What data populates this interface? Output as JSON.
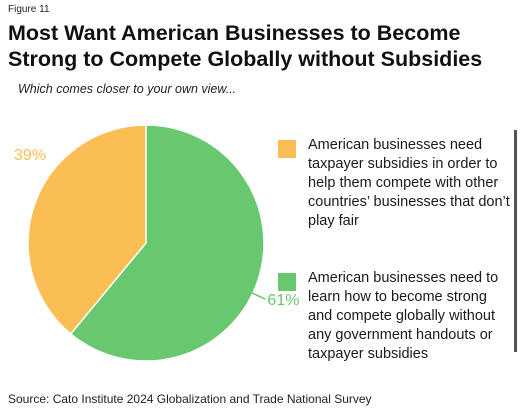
{
  "figure_label": "Figure 11",
  "title": "Most Want American Businesses to Become Strong to Compete Globally without Subsidies",
  "subtitle": "Which comes closer to your own view...",
  "source": "Source: Cato Institute 2024 Globalization and Trade National Survey",
  "chart_data": {
    "type": "pie",
    "title": "Most Want American Businesses to Become Strong to Compete Globally without Subsidies",
    "subtitle": "Which comes closer to your own view...",
    "slices": [
      {
        "label": "American businesses need taxpayer subsidies in order to help them compete with other countries’ businesses that don’t play fair",
        "value": 39,
        "display": "39%",
        "color": "#fbbe55"
      },
      {
        "label": "American businesses need to learn how to become strong and compete globally without any government handouts or taxpayer subsidies",
        "value": 61,
        "display": "61%",
        "color": "#67c870"
      }
    ],
    "legend_placement": "right"
  }
}
